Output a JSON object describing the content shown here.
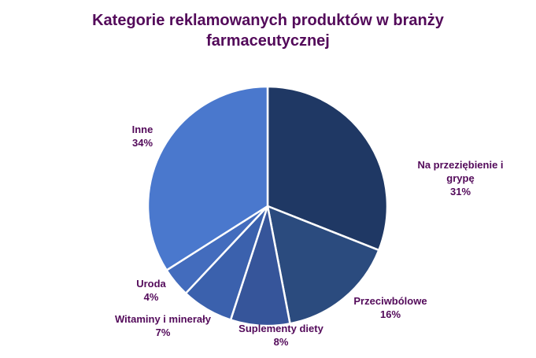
{
  "title": {
    "line1": "Kategorie reklamowanych produktów w branży",
    "line2": "farmaceutycznej"
  },
  "colors": {
    "title_text": "#530A5A",
    "label_text": "#530A5A",
    "slice_border": "#FFFFFF",
    "background": "#FFFFFF"
  },
  "chart_data": {
    "type": "pie",
    "title": "Kategorie reklamowanych produktów w branży farmaceutycznej",
    "start_angle_deg": 0,
    "direction": "clockwise",
    "legend": "none",
    "label_style": "outside, category name + percent",
    "slices": [
      {
        "label": "Na przeziębienie i grypę",
        "label_display": "Na przeziębienie i\ngrypę",
        "value": 31,
        "pct_text": "31%",
        "color": "#1F3864"
      },
      {
        "label": "Przeciwbólowe",
        "label_display": "Przeciwbólowe",
        "value": 16,
        "pct_text": "16%",
        "color": "#2B4B7E"
      },
      {
        "label": "Suplementy diety",
        "label_display": "Suplementy diety",
        "value": 8,
        "pct_text": "8%",
        "color": "#36559A"
      },
      {
        "label": "Witaminy i minerały",
        "label_display": "Witaminy i minerały",
        "value": 7,
        "pct_text": "7%",
        "color": "#3B61AD"
      },
      {
        "label": "Uroda",
        "label_display": "Uroda",
        "value": 4,
        "pct_text": "4%",
        "color": "#436CBD"
      },
      {
        "label": "Inne",
        "label_display": "Inne",
        "value": 34,
        "pct_text": "34%",
        "color": "#4A78CD"
      }
    ]
  }
}
